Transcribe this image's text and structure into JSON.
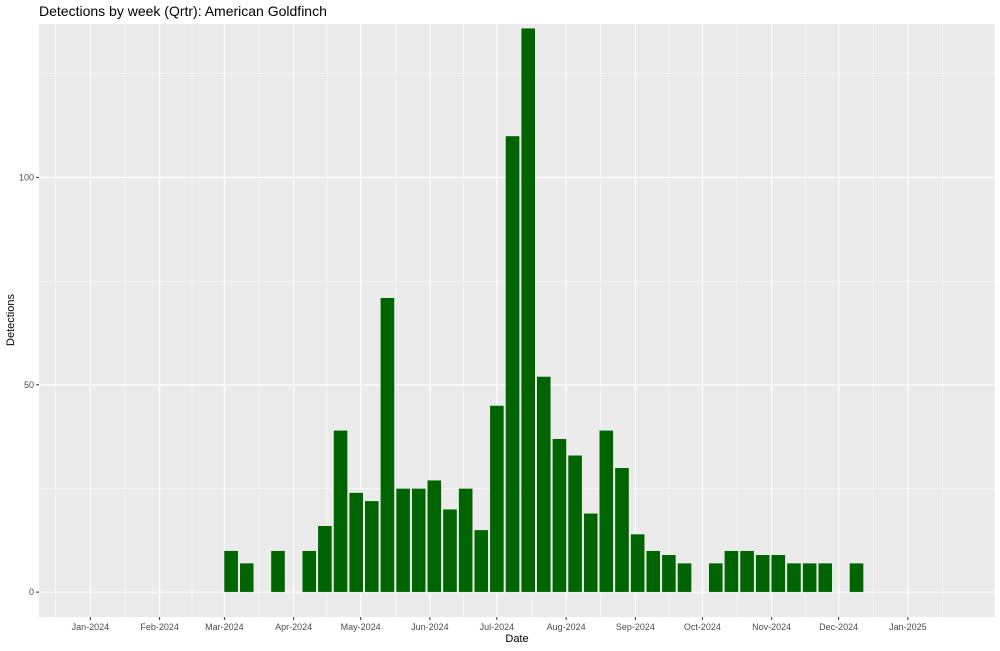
{
  "chart_data": {
    "type": "bar",
    "title": "Detections by week (Qrtr): American Goldfinch",
    "xlabel": "Date",
    "ylabel": "Detections",
    "bar_color": "#006400",
    "panel_background": "#ebebeb",
    "grid": true,
    "legend": "none",
    "xlim": [
      "2023-12-09",
      "2025-02-09"
    ],
    "ylim": [
      -6,
      137
    ],
    "x_ticks": [
      {
        "date": "2024-01-01",
        "label": "Jan-2024"
      },
      {
        "date": "2024-02-01",
        "label": "Feb-2024"
      },
      {
        "date": "2024-03-01",
        "label": "Mar-2024"
      },
      {
        "date": "2024-04-01",
        "label": "Apr-2024"
      },
      {
        "date": "2024-05-01",
        "label": "May-2024"
      },
      {
        "date": "2024-06-01",
        "label": "Jun-2024"
      },
      {
        "date": "2024-07-01",
        "label": "Jul-2024"
      },
      {
        "date": "2024-08-01",
        "label": "Aug-2024"
      },
      {
        "date": "2024-09-01",
        "label": "Sep-2024"
      },
      {
        "date": "2024-10-01",
        "label": "Oct-2024"
      },
      {
        "date": "2024-11-01",
        "label": "Nov-2024"
      },
      {
        "date": "2024-12-01",
        "label": "Dec-2024"
      },
      {
        "date": "2025-01-01",
        "label": "Jan-2025"
      }
    ],
    "y_ticks": [
      0,
      50,
      100
    ],
    "bars": [
      {
        "week": "2024-03-04",
        "value": 10
      },
      {
        "week": "2024-03-11",
        "value": 7
      },
      {
        "week": "2024-03-25",
        "value": 10
      },
      {
        "week": "2024-04-08",
        "value": 10
      },
      {
        "week": "2024-04-15",
        "value": 16
      },
      {
        "week": "2024-04-22",
        "value": 39
      },
      {
        "week": "2024-04-29",
        "value": 24
      },
      {
        "week": "2024-05-06",
        "value": 22
      },
      {
        "week": "2024-05-13",
        "value": 71
      },
      {
        "week": "2024-05-20",
        "value": 25
      },
      {
        "week": "2024-05-27",
        "value": 25
      },
      {
        "week": "2024-06-03",
        "value": 27
      },
      {
        "week": "2024-06-10",
        "value": 20
      },
      {
        "week": "2024-06-17",
        "value": 25
      },
      {
        "week": "2024-06-24",
        "value": 15
      },
      {
        "week": "2024-07-01",
        "value": 45
      },
      {
        "week": "2024-07-08",
        "value": 110
      },
      {
        "week": "2024-07-15",
        "value": 136
      },
      {
        "week": "2024-07-22",
        "value": 52
      },
      {
        "week": "2024-07-29",
        "value": 37
      },
      {
        "week": "2024-08-05",
        "value": 33
      },
      {
        "week": "2024-08-12",
        "value": 19
      },
      {
        "week": "2024-08-19",
        "value": 39
      },
      {
        "week": "2024-08-26",
        "value": 30
      },
      {
        "week": "2024-09-02",
        "value": 14
      },
      {
        "week": "2024-09-09",
        "value": 10
      },
      {
        "week": "2024-09-16",
        "value": 9
      },
      {
        "week": "2024-09-23",
        "value": 7
      },
      {
        "week": "2024-10-07",
        "value": 7
      },
      {
        "week": "2024-10-14",
        "value": 10
      },
      {
        "week": "2024-10-21",
        "value": 10
      },
      {
        "week": "2024-10-28",
        "value": 9
      },
      {
        "week": "2024-11-04",
        "value": 9
      },
      {
        "week": "2024-11-11",
        "value": 7
      },
      {
        "week": "2024-11-18",
        "value": 7
      },
      {
        "week": "2024-11-25",
        "value": 7
      },
      {
        "week": "2024-12-09",
        "value": 7
      }
    ]
  }
}
